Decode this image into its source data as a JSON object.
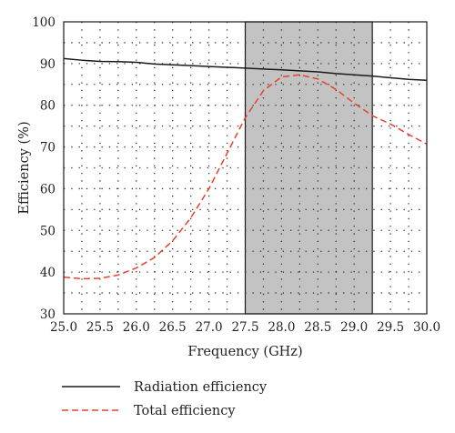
{
  "chart_data": {
    "type": "line",
    "xlabel": "Frequency (GHz)",
    "ylabel": "Efficiency (%)",
    "xlim": [
      25.0,
      30.0
    ],
    "ylim": [
      30,
      100
    ],
    "xticks": [
      "25.0",
      "25.5",
      "26.0",
      "26.5",
      "27.0",
      "27.5",
      "28.0",
      "28.5",
      "29.0",
      "29.5",
      "30.0"
    ],
    "yticks": [
      "30",
      "40",
      "50",
      "60",
      "70",
      "80",
      "90",
      "100"
    ],
    "grid": true,
    "legend_placement": "bottom",
    "shaded_band": {
      "from": 27.5,
      "to": 29.25,
      "color": "#c3c3c3"
    },
    "series": [
      {
        "name": "Radiation efficiency",
        "style": "solid",
        "color": "#1a1a1a",
        "x": [
          25.0,
          25.25,
          25.5,
          25.75,
          26.0,
          26.25,
          26.5,
          26.75,
          27.0,
          27.25,
          27.5,
          27.75,
          28.0,
          28.25,
          28.5,
          28.75,
          29.0,
          29.25,
          29.5,
          29.75,
          30.0
        ],
        "y": [
          91.2,
          90.8,
          90.5,
          90.45,
          90.3,
          89.9,
          89.7,
          89.5,
          89.3,
          89.1,
          88.9,
          88.7,
          88.5,
          88.25,
          88.0,
          87.6,
          87.3,
          87.0,
          86.6,
          86.2,
          86.0
        ]
      },
      {
        "name": "Total efficiency",
        "style": "dashed",
        "color": "#e8412c",
        "x": [
          25.0,
          25.25,
          25.5,
          25.75,
          26.0,
          26.25,
          26.5,
          26.75,
          27.0,
          27.25,
          27.5,
          27.75,
          28.0,
          28.25,
          28.5,
          28.75,
          29.0,
          29.25,
          29.5,
          29.75,
          30.0
        ],
        "y": [
          38.8,
          38.4,
          38.5,
          39.3,
          41.0,
          43.5,
          47.5,
          53.0,
          60.0,
          68.5,
          77.0,
          83.5,
          86.8,
          87.3,
          86.3,
          83.8,
          80.5,
          77.5,
          75.5,
          73.0,
          70.7
        ]
      }
    ]
  }
}
